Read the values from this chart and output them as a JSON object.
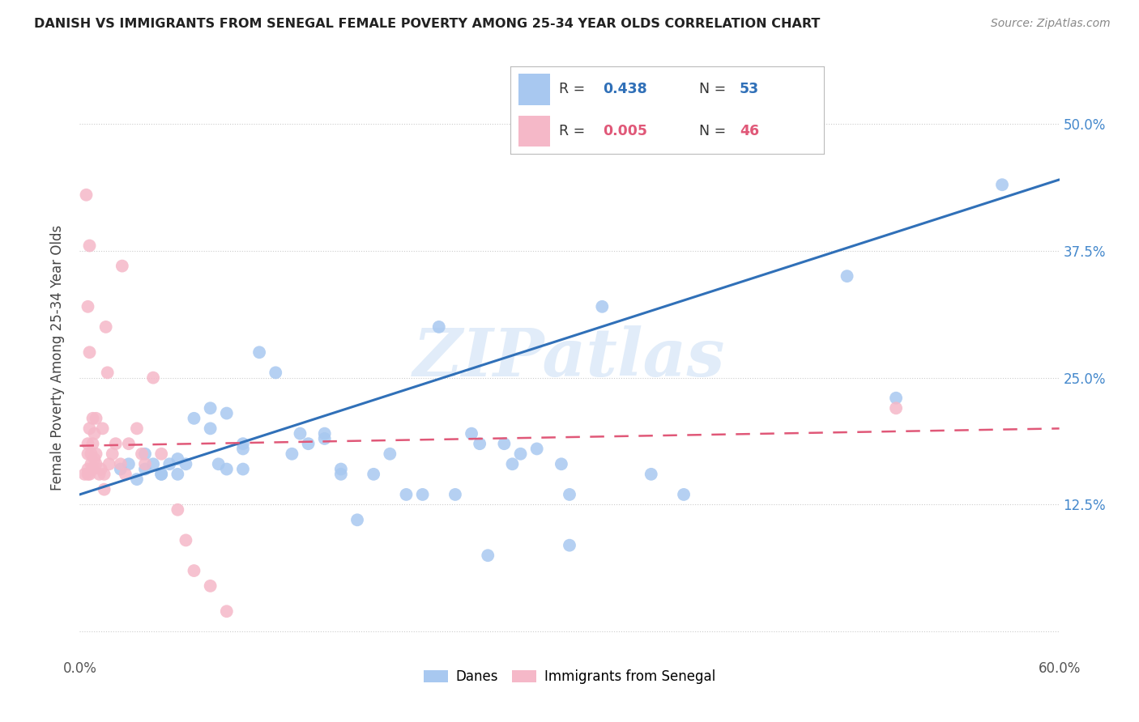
{
  "title": "DANISH VS IMMIGRANTS FROM SENEGAL FEMALE POVERTY AMONG 25-34 YEAR OLDS CORRELATION CHART",
  "source": "Source: ZipAtlas.com",
  "ylabel": "Female Poverty Among 25-34 Year Olds",
  "xlim": [
    0.0,
    0.6
  ],
  "ylim": [
    -0.025,
    0.565
  ],
  "xticks": [
    0.0,
    0.1,
    0.2,
    0.3,
    0.4,
    0.5,
    0.6
  ],
  "xticklabels": [
    "0.0%",
    "",
    "",
    "",
    "",
    "",
    "60.0%"
  ],
  "yticks": [
    0.0,
    0.125,
    0.25,
    0.375,
    0.5
  ],
  "yticklabels_right": [
    "",
    "12.5%",
    "25.0%",
    "37.5%",
    "50.0%"
  ],
  "danes_color": "#a8c8f0",
  "senegal_color": "#f5b8c8",
  "danes_line_color": "#3070b8",
  "senegal_line_color": "#e05878",
  "danes_line_x0": 0.0,
  "danes_line_y0": 0.135,
  "danes_line_x1": 0.6,
  "danes_line_y1": 0.445,
  "senegal_line_x0": 0.0,
  "senegal_line_y0": 0.183,
  "senegal_line_x1": 0.6,
  "senegal_line_y1": 0.2,
  "danes_x": [
    0.025,
    0.03,
    0.035,
    0.04,
    0.04,
    0.045,
    0.05,
    0.05,
    0.055,
    0.06,
    0.06,
    0.065,
    0.07,
    0.08,
    0.08,
    0.085,
    0.09,
    0.09,
    0.1,
    0.1,
    0.1,
    0.11,
    0.12,
    0.13,
    0.135,
    0.14,
    0.15,
    0.15,
    0.16,
    0.16,
    0.17,
    0.18,
    0.19,
    0.2,
    0.21,
    0.22,
    0.23,
    0.24,
    0.25,
    0.26,
    0.27,
    0.28,
    0.295,
    0.3,
    0.3,
    0.32,
    0.35,
    0.37,
    0.245,
    0.265,
    0.47,
    0.5,
    0.565
  ],
  "danes_y": [
    0.16,
    0.165,
    0.15,
    0.16,
    0.175,
    0.165,
    0.155,
    0.155,
    0.165,
    0.17,
    0.155,
    0.165,
    0.21,
    0.2,
    0.22,
    0.165,
    0.215,
    0.16,
    0.18,
    0.185,
    0.16,
    0.275,
    0.255,
    0.175,
    0.195,
    0.185,
    0.19,
    0.195,
    0.16,
    0.155,
    0.11,
    0.155,
    0.175,
    0.135,
    0.135,
    0.3,
    0.135,
    0.195,
    0.075,
    0.185,
    0.175,
    0.18,
    0.165,
    0.135,
    0.085,
    0.32,
    0.155,
    0.135,
    0.185,
    0.165,
    0.35,
    0.23,
    0.44
  ],
  "senegal_x": [
    0.003,
    0.004,
    0.005,
    0.005,
    0.005,
    0.005,
    0.006,
    0.006,
    0.007,
    0.007,
    0.008,
    0.008,
    0.008,
    0.009,
    0.009,
    0.01,
    0.01,
    0.01,
    0.012,
    0.013,
    0.014,
    0.015,
    0.015,
    0.016,
    0.017,
    0.018,
    0.02,
    0.022,
    0.025,
    0.026,
    0.028,
    0.03,
    0.035,
    0.038,
    0.04,
    0.045,
    0.05,
    0.06,
    0.065,
    0.07,
    0.08,
    0.09,
    0.005,
    0.006,
    0.5,
    0.006
  ],
  "senegal_y": [
    0.155,
    0.43,
    0.155,
    0.16,
    0.175,
    0.185,
    0.2,
    0.155,
    0.175,
    0.165,
    0.16,
    0.185,
    0.21,
    0.17,
    0.195,
    0.165,
    0.175,
    0.21,
    0.155,
    0.16,
    0.2,
    0.155,
    0.14,
    0.3,
    0.255,
    0.165,
    0.175,
    0.185,
    0.165,
    0.36,
    0.155,
    0.185,
    0.2,
    0.175,
    0.165,
    0.25,
    0.175,
    0.12,
    0.09,
    0.06,
    0.045,
    0.02,
    0.32,
    0.275,
    0.22,
    0.38
  ],
  "watermark_text": "ZIPatlas",
  "watermark_color": "#cde0f5",
  "watermark_alpha": 0.6,
  "background_color": "#ffffff",
  "grid_color": "#cccccc",
  "title_color": "#222222",
  "source_color": "#888888",
  "ylabel_color": "#444444",
  "right_tick_color": "#4488cc",
  "legend_r_danes": "0.438",
  "legend_n_danes": "53",
  "legend_r_senegal": "0.005",
  "legend_n_senegal": "46"
}
